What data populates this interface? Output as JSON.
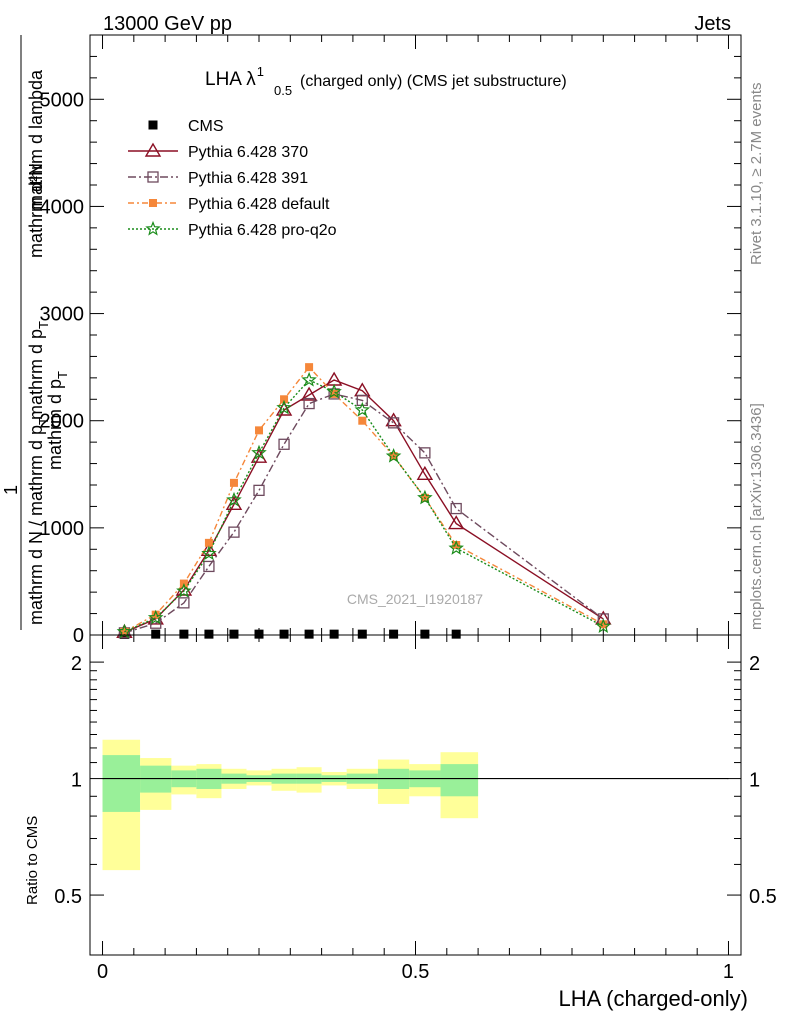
{
  "header": {
    "left": "13000 GeV pp",
    "right": "Jets"
  },
  "side_text": {
    "rivet": "Rivet 3.1.10, ≥ 2.7M events",
    "mcplots": "mcplots.cern.ch [arXiv:1306.3436]"
  },
  "watermark": "CMS_2021_I1920187",
  "colors": {
    "cms": "#000000",
    "p370": "#8b0f24",
    "p391": "#6e4a5e",
    "pdefault": "#f5873a",
    "pq2o": "#1a8c1a",
    "band_inner": "#99f099",
    "band_outer": "#ffff99"
  },
  "chart_data": [
    {
      "type": "line",
      "title_main": "LHA λ",
      "title_sup": "1",
      "title_sub": "0.5",
      "title_rest": "(charged only) (CMS jet substructure)",
      "ylabel_top": "1",
      "ylabel_num1": "mathrm d²N",
      "ylabel_num2": "mathrm d p",
      "ylabel_num2_sub": "T",
      "ylabel_num3": "mathrm d lambda",
      "ylabel_den1": "mathrm d N / mathrm d p",
      "ylabel_den_sub": "T",
      "ylabel_den2": "mathrm d p",
      "ylabel_den2_sub": "T",
      "xlim": [
        -0.02,
        1.02
      ],
      "ylim": [
        0,
        5600
      ],
      "yticks": [
        0,
        1000,
        2000,
        3000,
        4000,
        5000
      ],
      "ytick_labels": [
        "0",
        "1000",
        "2000",
        "3000",
        "4000",
        "5000"
      ],
      "legend": [
        "CMS",
        "Pythia 6.428 370",
        "Pythia 6.428 391",
        "Pythia 6.428 default",
        "Pythia 6.428 pro-q2o"
      ],
      "x": [
        0.035,
        0.085,
        0.13,
        0.17,
        0.21,
        0.25,
        0.29,
        0.33,
        0.37,
        0.415,
        0.465,
        0.515,
        0.565,
        0.8
      ],
      "series": [
        {
          "name": "CMS",
          "values": [
            5,
            8,
            8,
            8,
            8,
            8,
            8,
            8,
            8,
            8,
            8,
            8,
            8,
            null
          ]
        },
        {
          "name": "Pythia 6.428 370",
          "values": [
            25,
            150,
            420,
            790,
            1220,
            1660,
            2100,
            2240,
            2380,
            2280,
            2000,
            1500,
            1040,
            150
          ]
        },
        {
          "name": "Pythia 6.428 391",
          "values": [
            20,
            110,
            300,
            640,
            960,
            1350,
            1780,
            2160,
            2250,
            2190,
            1980,
            1700,
            1180,
            150
          ]
        },
        {
          "name": "Pythia 6.428 default",
          "values": [
            30,
            190,
            480,
            860,
            1420,
            1910,
            2200,
            2500,
            2250,
            2000,
            1670,
            1280,
            840,
            100
          ]
        },
        {
          "name": "Pythia 6.428 pro-q2o",
          "values": [
            30,
            160,
            410,
            760,
            1260,
            1700,
            2120,
            2380,
            2270,
            2100,
            1670,
            1280,
            810,
            80
          ]
        }
      ]
    },
    {
      "type": "area",
      "ylabel": "Ratio to CMS",
      "xlabel": "LHA (charged-only)",
      "xlim": [
        -0.02,
        1.02
      ],
      "xticks": [
        0,
        0.5,
        1
      ],
      "xtick_labels": [
        "0",
        "0.5",
        "1"
      ],
      "ylim": [
        0.35,
        2.35
      ],
      "yticks": [
        0.5,
        1,
        2
      ],
      "ytick_labels": [
        "0.5",
        "1",
        "2"
      ],
      "bins": [
        0,
        0.06,
        0.11,
        0.15,
        0.19,
        0.23,
        0.27,
        0.31,
        0.35,
        0.39,
        0.44,
        0.49,
        0.54,
        0.6,
        1.0
      ],
      "inner_lo": [
        0.82,
        0.92,
        0.95,
        0.94,
        0.97,
        0.98,
        0.97,
        0.97,
        0.98,
        0.97,
        0.94,
        0.95,
        0.9
      ],
      "inner_hi": [
        1.15,
        1.08,
        1.05,
        1.06,
        1.03,
        1.02,
        1.03,
        1.03,
        1.02,
        1.03,
        1.06,
        1.05,
        1.09
      ],
      "outer_lo": [
        0.58,
        0.83,
        0.91,
        0.89,
        0.94,
        0.96,
        0.93,
        0.92,
        0.96,
        0.94,
        0.86,
        0.9,
        0.79
      ],
      "outer_hi": [
        1.26,
        1.13,
        1.08,
        1.09,
        1.06,
        1.05,
        1.06,
        1.07,
        1.04,
        1.06,
        1.12,
        1.09,
        1.17
      ],
      "reference_line": 1
    }
  ]
}
